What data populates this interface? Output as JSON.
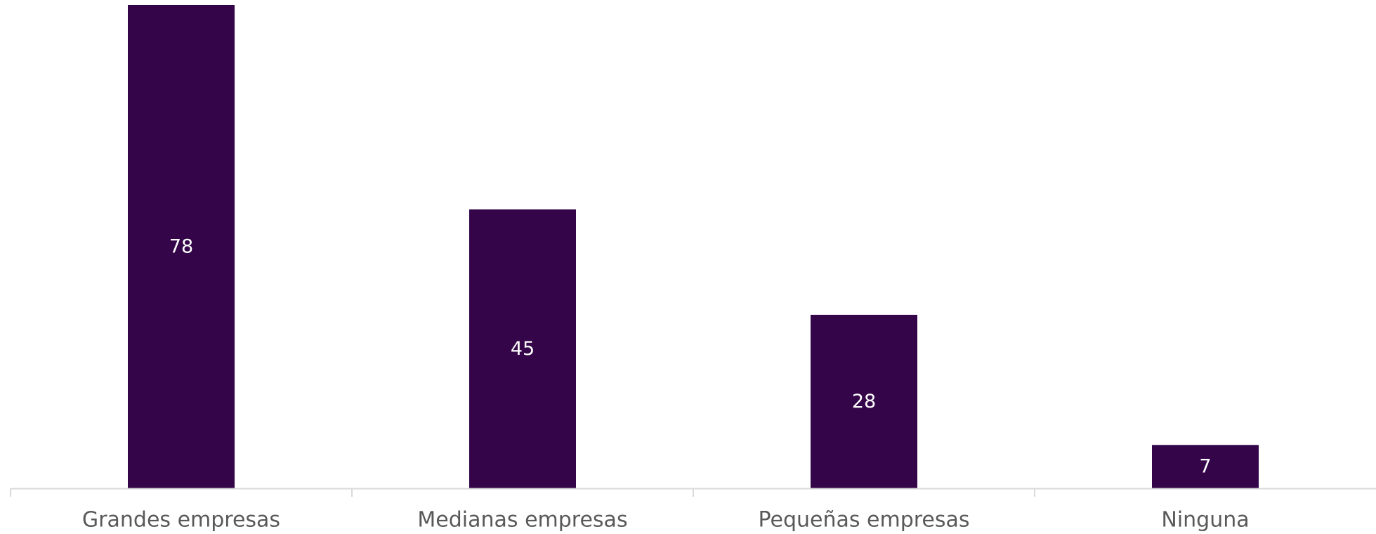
{
  "chart_data": {
    "type": "bar",
    "categories": [
      "Grandes empresas",
      "Medianas empresas",
      "Pequeñas empresas",
      "Ninguna"
    ],
    "values": [
      78,
      45,
      28,
      7
    ],
    "data_labels": [
      "78",
      "45",
      "28",
      "7"
    ],
    "title": "",
    "xlabel": "",
    "ylabel": "",
    "ylim": [
      0,
      78
    ],
    "grid": false,
    "legend": "none",
    "bar_color": "#35054a",
    "label_color": "#ffffff",
    "axis_color": "#d9d9d9",
    "category_label_color": "#595959"
  }
}
